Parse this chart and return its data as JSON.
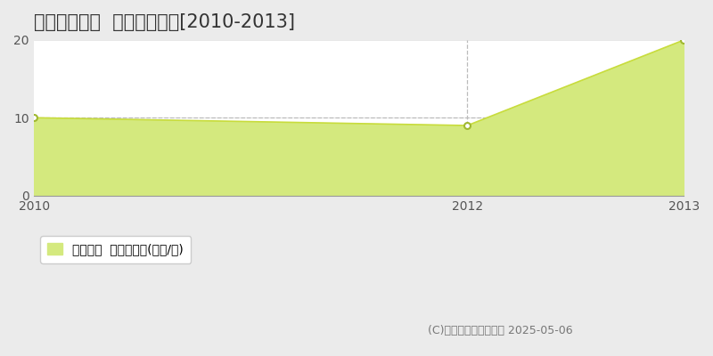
{
  "title": "富良野市幸町  土地価格推移[2010-2013]",
  "years": [
    2010,
    2012,
    2013
  ],
  "values": [
    10,
    9,
    20
  ],
  "fill_color": "#d4e97e",
  "line_color": "#c8dc3c",
  "marker_color": "#ffffff",
  "marker_edgecolor": "#a0b830",
  "background_color": "#ebebeb",
  "plot_bg_color": "#ffffff",
  "ylim": [
    0,
    20
  ],
  "xlim_min": 2010,
  "xlim_max": 2013,
  "yticks": [
    0,
    10,
    20
  ],
  "xticks": [
    2010,
    2012,
    2013
  ],
  "vline_x": 2012,
  "hline_y": 10,
  "legend_label": "土地価格  平均坪単価(万円/坪)",
  "copyright_text": "(C)土地価格ドットコム 2025-05-06",
  "title_fontsize": 15,
  "legend_fontsize": 10,
  "tick_fontsize": 10,
  "copyright_fontsize": 9
}
